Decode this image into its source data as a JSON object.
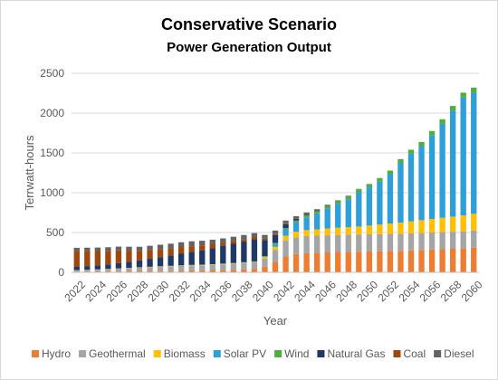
{
  "chart_data": {
    "type": "bar",
    "stacked": true,
    "title": "Conservative Scenario",
    "subtitle": "Power Generation Output",
    "xlabel": "Year",
    "ylabel": "Terrwatt-hours",
    "ylim": [
      0,
      2500
    ],
    "yticks": [
      0,
      500,
      1000,
      1500,
      2000,
      2500
    ],
    "grid": true,
    "legend": "bottom",
    "x": [
      2022,
      2023,
      2024,
      2025,
      2026,
      2027,
      2028,
      2029,
      2030,
      2031,
      2032,
      2033,
      2034,
      2035,
      2036,
      2037,
      2038,
      2039,
      2040,
      2041,
      2042,
      2043,
      2044,
      2045,
      2046,
      2047,
      2048,
      2049,
      2050,
      2051,
      2052,
      2053,
      2054,
      2055,
      2056,
      2057,
      2058,
      2059,
      2060
    ],
    "xtick_labels": [
      "2022",
      "2024",
      "2026",
      "2028",
      "2030",
      "2032",
      "2034",
      "2036",
      "2038",
      "2040",
      "2042",
      "2044",
      "2046",
      "2048",
      "2050",
      "2052",
      "2054",
      "2056",
      "2058",
      "2060"
    ],
    "series": [
      {
        "name": "Hydro",
        "color": "#ED7D31",
        "values": [
          8,
          10,
          12,
          14,
          15,
          16,
          17,
          18,
          19,
          20,
          22,
          24,
          26,
          28,
          30,
          32,
          35,
          40,
          70,
          130,
          200,
          230,
          240,
          245,
          250,
          255,
          258,
          260,
          262,
          265,
          268,
          270,
          275,
          280,
          285,
          290,
          295,
          300,
          310
        ]
      },
      {
        "name": "Geothermal",
        "color": "#A5A5A5",
        "values": [
          15,
          18,
          20,
          25,
          30,
          35,
          40,
          45,
          50,
          55,
          58,
          60,
          62,
          65,
          70,
          75,
          80,
          85,
          100,
          150,
          200,
          210,
          215,
          215,
          215,
          215,
          215,
          215,
          215,
          215,
          215,
          215,
          215,
          215,
          215,
          215,
          215,
          215,
          215
        ]
      },
      {
        "name": "Biomass",
        "color": "#FFC000",
        "values": [
          3,
          3,
          3,
          3,
          3,
          4,
          4,
          4,
          4,
          4,
          4,
          5,
          5,
          5,
          5,
          6,
          6,
          6,
          20,
          40,
          60,
          70,
          75,
          80,
          85,
          90,
          95,
          100,
          110,
          120,
          130,
          140,
          150,
          160,
          170,
          180,
          190,
          200,
          210
        ]
      },
      {
        "name": "Solar PV",
        "color": "#2E9FD8",
        "values": [
          1,
          1,
          1,
          1,
          1,
          1,
          2,
          2,
          2,
          2,
          3,
          3,
          3,
          3,
          4,
          4,
          5,
          5,
          10,
          40,
          80,
          120,
          160,
          200,
          250,
          300,
          350,
          430,
          480,
          540,
          620,
          750,
          850,
          930,
          1050,
          1180,
          1330,
          1480,
          1520
        ]
      },
      {
        "name": "Wind",
        "color": "#4DAF3C",
        "values": [
          1,
          1,
          1,
          1,
          1,
          1,
          1,
          1,
          1,
          1,
          1,
          1,
          1,
          1,
          1,
          1,
          1,
          2,
          5,
          10,
          15,
          20,
          25,
          28,
          30,
          32,
          35,
          38,
          40,
          42,
          45,
          48,
          50,
          52,
          55,
          58,
          60,
          62,
          65
        ]
      },
      {
        "name": "Natural Gas",
        "color": "#1F3864",
        "values": [
          40,
          45,
          50,
          55,
          65,
          75,
          85,
          100,
          115,
          130,
          150,
          165,
          180,
          200,
          220,
          240,
          260,
          280,
          200,
          100,
          50,
          20,
          10,
          5,
          3,
          2,
          1,
          0,
          0,
          0,
          0,
          0,
          0,
          0,
          0,
          0,
          0,
          0,
          0
        ]
      },
      {
        "name": "Coal",
        "color": "#9E480E",
        "values": [
          200,
          190,
          180,
          170,
          160,
          140,
          120,
          110,
          100,
          90,
          80,
          70,
          60,
          50,
          40,
          35,
          30,
          25,
          20,
          15,
          10,
          5,
          3,
          0,
          0,
          0,
          0,
          0,
          0,
          0,
          0,
          0,
          0,
          0,
          0,
          0,
          0,
          0,
          0
        ]
      },
      {
        "name": "Diesel",
        "color": "#636363",
        "values": [
          40,
          42,
          44,
          46,
          48,
          50,
          52,
          54,
          56,
          58,
          60,
          62,
          60,
          58,
          56,
          54,
          52,
          50,
          45,
          40,
          35,
          30,
          25,
          20,
          15,
          10,
          8,
          5,
          3,
          2,
          0,
          0,
          0,
          0,
          0,
          0,
          0,
          0,
          0
        ]
      }
    ]
  }
}
